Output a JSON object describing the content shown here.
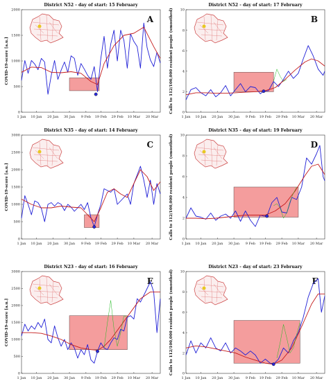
{
  "chart_data": [
    {
      "id": "A",
      "type": "line",
      "title": "District N52 - day of start: 15 February",
      "ylabel": "COVID-19-score [a.u.]",
      "ylim": [
        0,
        2000
      ],
      "yticks": [
        0,
        500,
        1000,
        1500,
        2000
      ],
      "xlim": [
        0,
        84
      ],
      "xticks": [
        0,
        9,
        19,
        29,
        39,
        48,
        58,
        68,
        79
      ],
      "xticklabels": [
        "1 Jan",
        "10 Jan",
        "20 Jan",
        "30 Jan",
        "9 Feb",
        "19 Feb",
        "29 Feb",
        "10 Mar",
        "20 Mar"
      ],
      "annotation_box": {
        "x": [
          29,
          47
        ],
        "y": [
          420,
          670
        ]
      },
      "start_day": 45,
      "start_value": 350,
      "series": [
        {
          "color": "#1f1fd6",
          "x": [
            0,
            2,
            4,
            6,
            8,
            10,
            12,
            14,
            16,
            18,
            20,
            22,
            24,
            26,
            28,
            30,
            32,
            34,
            36,
            38,
            40,
            42,
            44,
            46,
            48,
            50,
            52,
            54,
            56,
            58,
            60,
            62,
            64,
            66,
            68,
            70,
            72,
            74,
            76,
            78,
            80,
            82,
            84
          ],
          "y": [
            620,
            1010,
            760,
            1010,
            940,
            830,
            1050,
            980,
            350,
            720,
            1010,
            640,
            820,
            980,
            780,
            1100,
            1050,
            720,
            950,
            840,
            720,
            640,
            890,
            400,
            1050,
            1480,
            860,
            1330,
            1600,
            1000,
            1600,
            1400,
            860,
            1530,
            1380,
            1280,
            860,
            1740,
            1260,
            1020,
            890,
            1170,
            960
          ]
        },
        {
          "color": "#c41a1a",
          "x": [
            0,
            6,
            12,
            18,
            24,
            30,
            36,
            42,
            46,
            50,
            56,
            62,
            68,
            74,
            80,
            84
          ],
          "y": [
            780,
            880,
            870,
            780,
            770,
            790,
            760,
            600,
            540,
            950,
            1300,
            1500,
            1540,
            1660,
            1280,
            1050
          ]
        },
        {
          "color": "#22bb22",
          "x": [],
          "y": []
        }
      ]
    },
    {
      "id": "B",
      "type": "line",
      "title": "District N52 - day of start: 17 February",
      "ylabel": "Calls to 112/100,000 resident people (smoothed)",
      "ylim": [
        0,
        10
      ],
      "yticks": [
        0,
        2,
        4,
        6,
        8,
        10
      ],
      "xlim": [
        0,
        84
      ],
      "xticks": [
        0,
        9,
        19,
        29,
        39,
        48,
        58,
        68,
        79
      ],
      "xticklabels": [
        "1 Jan",
        "10 Jan",
        "20 Jan",
        "30 Jan",
        "9 Feb",
        "19 Feb",
        "29 Feb",
        "10 Mar",
        "20 Mar"
      ],
      "annotation_box": {
        "x": [
          29,
          53
        ],
        "y": [
          2.0,
          3.9
        ]
      },
      "start_day": 47,
      "start_value": 2.05,
      "series": [
        {
          "color": "#1f1fd6",
          "x": [
            0,
            3,
            6,
            9,
            12,
            15,
            18,
            21,
            24,
            27,
            30,
            33,
            36,
            39,
            42,
            45,
            47,
            50,
            53,
            56,
            59,
            62,
            65,
            68,
            71,
            74,
            77,
            80,
            83,
            84
          ],
          "y": [
            1.2,
            2.2,
            2.4,
            1.9,
            1.6,
            2.2,
            1.5,
            1.9,
            2.6,
            1.6,
            2.2,
            2.8,
            2.0,
            2.5,
            2.4,
            1.8,
            2.05,
            2.1,
            3.0,
            2.5,
            3.2,
            4.0,
            3.3,
            3.8,
            5.2,
            6.5,
            5.5,
            4.2,
            3.6,
            4.0
          ]
        },
        {
          "color": "#c41a1a",
          "x": [
            0,
            6,
            12,
            18,
            24,
            30,
            36,
            42,
            48,
            54,
            60,
            66,
            72,
            76,
            80,
            84
          ],
          "y": [
            1.7,
            1.9,
            1.9,
            1.85,
            1.85,
            1.9,
            1.95,
            2.0,
            2.1,
            2.4,
            3.2,
            4.1,
            4.9,
            5.2,
            5.0,
            4.5
          ]
        },
        {
          "color": "#22bb22",
          "x": [
            53,
            55,
            57,
            59,
            61
          ],
          "y": [
            3.0,
            4.2,
            3.5,
            3.0,
            3.2
          ]
        }
      ]
    },
    {
      "id": "C",
      "type": "line",
      "title": "District N35 - day of start: 14 February",
      "ylabel": "COVID-19-score [a.u.]",
      "ylim": [
        0,
        3000
      ],
      "yticks": [
        0,
        500,
        1000,
        1500,
        2000,
        2500,
        3000
      ],
      "xlim": [
        0,
        84
      ],
      "xticks": [
        0,
        9,
        19,
        29,
        39,
        48,
        58,
        68,
        79
      ],
      "xticklabels": [
        "1 Jan",
        "10 Jan",
        "20 Jan",
        "30 Jan",
        "9 Feb",
        "19 Feb",
        "29 Feb",
        "10 Mar",
        "20 Mar"
      ],
      "annotation_box": {
        "x": [
          38,
          47
        ],
        "y": [
          330,
          700
        ]
      },
      "start_day": 44,
      "start_value": 350,
      "series": [
        {
          "color": "#1f1fd6",
          "x": [
            0,
            2,
            4,
            6,
            8,
            10,
            12,
            14,
            16,
            18,
            20,
            22,
            24,
            26,
            28,
            30,
            32,
            34,
            36,
            38,
            40,
            42,
            44,
            46,
            48,
            50,
            52,
            54,
            56,
            58,
            60,
            62,
            64,
            66,
            68,
            70,
            72,
            74,
            76,
            78,
            80,
            82,
            84
          ],
          "y": [
            600,
            1250,
            1000,
            700,
            1100,
            1050,
            880,
            500,
            1000,
            1050,
            950,
            1050,
            1000,
            820,
            1000,
            920,
            800,
            900,
            1000,
            850,
            1050,
            620,
            350,
            700,
            1000,
            1450,
            1400,
            1350,
            1450,
            1000,
            1100,
            1200,
            1300,
            1000,
            1600,
            1850,
            2100,
            1700,
            1200,
            1700,
            1000,
            1600,
            1300
          ]
        },
        {
          "color": "#c41a1a",
          "x": [
            0,
            6,
            12,
            18,
            24,
            30,
            36,
            40,
            44,
            48,
            52,
            56,
            60,
            64,
            68,
            72,
            76,
            80,
            84
          ],
          "y": [
            1150,
            1000,
            900,
            900,
            950,
            920,
            900,
            700,
            500,
            900,
            1350,
            1450,
            1300,
            1200,
            1600,
            2000,
            1800,
            1400,
            1650
          ]
        },
        {
          "color": "#22bb22",
          "x": [],
          "y": []
        }
      ]
    },
    {
      "id": "D",
      "type": "line",
      "title": "District N35 - day of start: 19 February",
      "ylabel": "Calls to 112/100,000 resident people (smoothed)",
      "ylim": [
        0,
        10
      ],
      "yticks": [
        0,
        2,
        4,
        6,
        8,
        10
      ],
      "xlim": [
        0,
        84
      ],
      "xticks": [
        0,
        9,
        19,
        29,
        39,
        48,
        58,
        68,
        79
      ],
      "xticklabels": [
        "1 Jan",
        "10 Jan",
        "20 Jan",
        "30 Jan",
        "9 Feb",
        "19 Feb",
        "29 Feb",
        "10 Mar",
        "20 Mar"
      ],
      "annotation_box": {
        "x": [
          29,
          68
        ],
        "y": [
          2.1,
          5.0
        ]
      },
      "start_day": 49,
      "start_value": 2.2,
      "series": [
        {
          "color": "#1f1fd6",
          "x": [
            0,
            3,
            6,
            9,
            12,
            15,
            18,
            21,
            24,
            27,
            30,
            33,
            36,
            39,
            42,
            45,
            47,
            49,
            52,
            55,
            58,
            61,
            64,
            67,
            70,
            73,
            76,
            79,
            81,
            83,
            84
          ],
          "y": [
            2.0,
            3.0,
            2.2,
            2.1,
            1.9,
            2.5,
            1.8,
            2.2,
            2.4,
            2.0,
            2.7,
            1.7,
            2.7,
            1.8,
            1.2,
            2.3,
            2.2,
            2.2,
            3.5,
            4.0,
            2.6,
            2.5,
            4.0,
            3.8,
            5.0,
            7.8,
            7.2,
            8.2,
            9.0,
            6.0,
            5.6
          ]
        },
        {
          "color": "#c41a1a",
          "x": [
            0,
            6,
            12,
            18,
            24,
            30,
            36,
            42,
            48,
            54,
            60,
            66,
            72,
            76,
            80,
            84
          ],
          "y": [
            2.0,
            2.0,
            1.95,
            2.0,
            2.1,
            2.2,
            2.3,
            2.3,
            2.3,
            2.7,
            3.4,
            4.6,
            6.1,
            7.0,
            7.2,
            6.2
          ]
        },
        {
          "color": "#22bb22",
          "x": [
            53,
            55,
            57,
            59,
            61,
            63,
            65,
            67
          ],
          "y": [
            3.2,
            3.4,
            3.0,
            2.0,
            2.5,
            3.6,
            4.4,
            5.0
          ]
        }
      ]
    },
    {
      "id": "E",
      "type": "line",
      "title": "District N23 - day of start: 16 February",
      "ylabel": "COVID-19-score [a.u.]",
      "ylim": [
        0,
        3000
      ],
      "yticks": [
        0,
        500,
        1000,
        1500,
        2000,
        2500,
        3000
      ],
      "xlim": [
        0,
        84
      ],
      "xticks": [
        0,
        9,
        19,
        29,
        39,
        48,
        58,
        68,
        79
      ],
      "xticklabels": [
        "1 Jan",
        "10 Jan",
        "20 Jan",
        "30 Jan",
        "9 Feb",
        "19 Feb",
        "29 Feb",
        "10 Mar",
        "20 Mar"
      ],
      "annotation_box": {
        "x": [
          29,
          64
        ],
        "y": [
          700,
          1700
        ]
      },
      "start_day": 46,
      "start_value": 650,
      "series": [
        {
          "color": "#1f1fd6",
          "x": [
            0,
            2,
            4,
            6,
            8,
            10,
            12,
            14,
            16,
            18,
            20,
            22,
            24,
            26,
            28,
            30,
            32,
            34,
            36,
            38,
            40,
            42,
            44,
            46,
            48,
            50,
            52,
            54,
            56,
            58,
            60,
            62,
            64,
            66,
            68,
            70,
            72,
            74,
            76,
            78,
            80,
            82,
            84
          ],
          "y": [
            1100,
            1450,
            1250,
            1400,
            1300,
            1500,
            1350,
            1600,
            1000,
            900,
            1400,
            1050,
            800,
            1000,
            700,
            900,
            750,
            450,
            700,
            550,
            850,
            400,
            300,
            650,
            900,
            750,
            700,
            900,
            1050,
            1000,
            1300,
            1250,
            1650,
            1700,
            1600,
            2200,
            2100,
            2300,
            2500,
            2700,
            2400,
            1200,
            2200
          ]
        },
        {
          "color": "#c41a1a",
          "x": [
            0,
            6,
            12,
            18,
            24,
            30,
            36,
            42,
            46,
            50,
            54,
            60,
            66,
            72,
            78,
            84
          ],
          "y": [
            1200,
            1200,
            1180,
            1100,
            1000,
            850,
            750,
            700,
            680,
            800,
            1000,
            1400,
            1800,
            2200,
            2400,
            2400
          ]
        },
        {
          "color": "#22bb22",
          "x": [
            50,
            52,
            54,
            56,
            58,
            60,
            62,
            64
          ],
          "y": [
            750,
            1500,
            2150,
            1300,
            800,
            1200,
            1700,
            1650
          ]
        }
      ]
    },
    {
      "id": "F",
      "type": "line",
      "title": "District N23 - day of start: 23 February",
      "ylabel": "Calls to 112/100,000 resident people (smoothed)",
      "ylim": [
        0,
        10
      ],
      "yticks": [
        0,
        2,
        4,
        6,
        8,
        10
      ],
      "xlim": [
        0,
        84
      ],
      "xticks": [
        0,
        9,
        19,
        29,
        39,
        48,
        58,
        68,
        79
      ],
      "xticklabels": [
        "1 Jan",
        "10 Jan",
        "20 Jan",
        "30 Jan",
        "9 Feb",
        "19 Feb",
        "29 Feb",
        "10 Mar",
        "20 Mar"
      ],
      "annotation_box": {
        "x": [
          29,
          69
        ],
        "y": [
          1.0,
          5.2
        ]
      },
      "start_day": 53,
      "start_value": 0.9,
      "series": [
        {
          "color": "#1f1fd6",
          "x": [
            0,
            3,
            6,
            9,
            12,
            15,
            18,
            21,
            24,
            27,
            30,
            33,
            36,
            39,
            42,
            45,
            48,
            51,
            53,
            56,
            59,
            62,
            65,
            68,
            71,
            74,
            77,
            80,
            82,
            84
          ],
          "y": [
            1.8,
            3.2,
            2.0,
            3.0,
            2.5,
            3.5,
            2.5,
            2.2,
            3.0,
            2.0,
            2.5,
            2.2,
            1.8,
            2.2,
            1.8,
            1.0,
            1.4,
            1.0,
            0.9,
            1.4,
            2.5,
            2.0,
            3.2,
            4.0,
            5.5,
            7.5,
            8.8,
            9.3,
            6.0,
            7.6
          ]
        },
        {
          "color": "#c41a1a",
          "x": [
            0,
            6,
            12,
            18,
            24,
            30,
            36,
            42,
            48,
            53,
            58,
            64,
            70,
            76,
            80,
            84
          ],
          "y": [
            2.5,
            2.7,
            2.6,
            2.4,
            2.2,
            2.0,
            1.6,
            1.3,
            1.0,
            0.9,
            1.3,
            2.5,
            4.6,
            6.8,
            7.8,
            7.8
          ]
        },
        {
          "color": "#22bb22",
          "x": [
            55,
            57,
            59,
            61,
            63,
            65,
            67,
            69
          ],
          "y": [
            1.5,
            3.0,
            4.8,
            3.5,
            2.0,
            2.5,
            3.8,
            5.0
          ]
        }
      ]
    }
  ]
}
